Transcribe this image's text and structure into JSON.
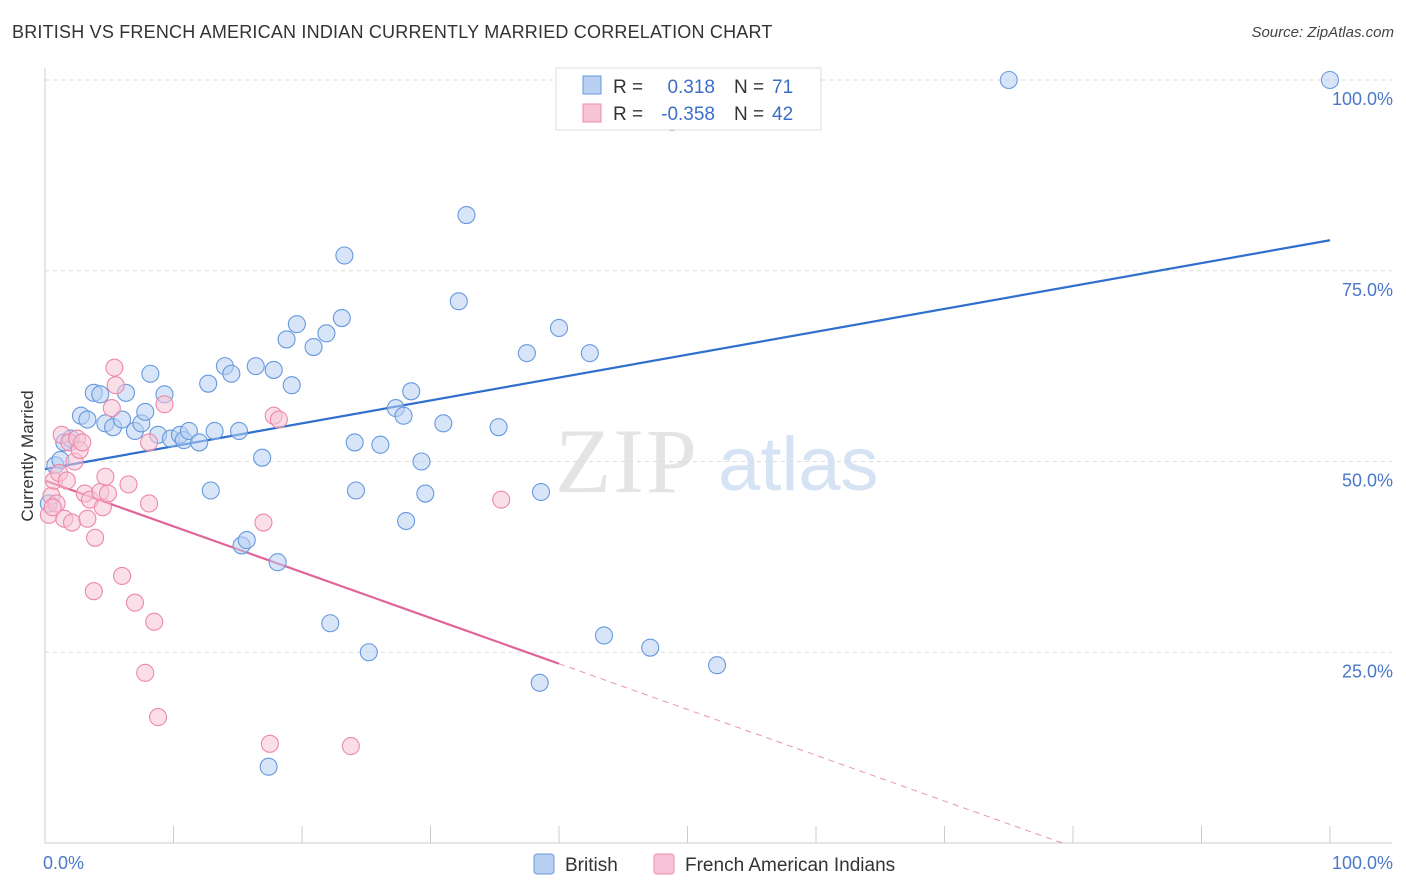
{
  "title": "BRITISH VS FRENCH AMERICAN INDIAN CURRENTLY MARRIED CORRELATION CHART",
  "source": "Source: ZipAtlas.com",
  "chart_data": {
    "type": "scatter",
    "ylabel": "Currently Married",
    "xlim": [
      0,
      100
    ],
    "ylim": [
      0,
      100
    ],
    "x_tick_labels": [
      "0.0%",
      "100.0%"
    ],
    "y_ticks": [
      25,
      50,
      75,
      100
    ],
    "y_tick_labels": [
      "25.0%",
      "50.0%",
      "75.0%",
      "100.0%"
    ],
    "grid": true,
    "watermark": {
      "zip": "ZIP",
      "atlas": "atlas"
    },
    "legend_stats": [
      {
        "r_label": "R =",
        "r_value": "0.318",
        "n_label": "N =",
        "n_value": "71",
        "color": "#6699dd"
      },
      {
        "r_label": "R =",
        "r_value": "-0.358",
        "n_label": "N =",
        "n_value": "42",
        "color": "#ee88aa"
      }
    ],
    "series": [
      {
        "name": "British",
        "color": "#6699dd",
        "fill": "#b8d0f2",
        "trend": {
          "x0": 0,
          "y0": 49,
          "x1": 100,
          "y1": 79,
          "color": "#2f6fce"
        },
        "points": [
          [
            0.3,
            44.5
          ],
          [
            0.8,
            49.5
          ],
          [
            1.2,
            50.2
          ],
          [
            1.5,
            52.5
          ],
          [
            2,
            53
          ],
          [
            2.8,
            56
          ],
          [
            3.3,
            55.5
          ],
          [
            3.8,
            59
          ],
          [
            4.3,
            58.8
          ],
          [
            4.7,
            55
          ],
          [
            5.3,
            54.5
          ],
          [
            6,
            55.5
          ],
          [
            6.3,
            59
          ],
          [
            7,
            54
          ],
          [
            7.5,
            55
          ],
          [
            7.8,
            56.5
          ],
          [
            8.2,
            61.5
          ],
          [
            8.8,
            53.5
          ],
          [
            9.3,
            58.8
          ],
          [
            9.8,
            53
          ],
          [
            10.5,
            53.5
          ],
          [
            10.8,
            52.8
          ],
          [
            11.2,
            54
          ],
          [
            12,
            52.5
          ],
          [
            12.7,
            60.2
          ],
          [
            12.9,
            46.2
          ],
          [
            13.2,
            54
          ],
          [
            14,
            62.5
          ],
          [
            14.5,
            61.5
          ],
          [
            15.1,
            54
          ],
          [
            15.3,
            39
          ],
          [
            15.7,
            39.7
          ],
          [
            16.4,
            62.5
          ],
          [
            16.9,
            50.5
          ],
          [
            17.4,
            10
          ],
          [
            17.8,
            62
          ],
          [
            18.1,
            36.8
          ],
          [
            18.8,
            66
          ],
          [
            19.2,
            60
          ],
          [
            19.6,
            68
          ],
          [
            20.9,
            65
          ],
          [
            21.9,
            66.8
          ],
          [
            22.2,
            28.8
          ],
          [
            23.1,
            68.8
          ],
          [
            23.3,
            77
          ],
          [
            24.1,
            52.5
          ],
          [
            24.2,
            46.2
          ],
          [
            25.2,
            25
          ],
          [
            26.1,
            52.2
          ],
          [
            27.3,
            57
          ],
          [
            27.9,
            56
          ],
          [
            28.1,
            42.2
          ],
          [
            28.5,
            59.2
          ],
          [
            29.3,
            50
          ],
          [
            29.6,
            45.8
          ],
          [
            31,
            55
          ],
          [
            32.2,
            71
          ],
          [
            32.8,
            82.3
          ],
          [
            35.3,
            54.5
          ],
          [
            37.5,
            64.2
          ],
          [
            38.5,
            21
          ],
          [
            38.6,
            46
          ],
          [
            40,
            67.5
          ],
          [
            42.4,
            64.2
          ],
          [
            43.5,
            27.2
          ],
          [
            47.1,
            25.6
          ],
          [
            48.8,
            94.5
          ],
          [
            52.3,
            23.3
          ],
          [
            75,
            100
          ],
          [
            100,
            100
          ],
          [
            49,
            96
          ]
        ]
      },
      {
        "name": "French American Indians",
        "color": "#ee88aa",
        "fill": "#f6c4d6",
        "trend": {
          "x0": 0,
          "y0": 47.5,
          "x1": 40,
          "y1": 23.5,
          "dash_x1": 100,
          "dash_y1": -12.5,
          "color": "#e0649a"
        },
        "points": [
          [
            0.3,
            43
          ],
          [
            0.5,
            45.5
          ],
          [
            0.7,
            47.5
          ],
          [
            0.9,
            44.5
          ],
          [
            1.1,
            48.5
          ],
          [
            1.3,
            53.5
          ],
          [
            1.5,
            42.5
          ],
          [
            1.7,
            47.5
          ],
          [
            1.9,
            52.5
          ],
          [
            2.1,
            42
          ],
          [
            2.3,
            50
          ],
          [
            2.5,
            53
          ],
          [
            2.7,
            51.5
          ],
          [
            2.9,
            52.5
          ],
          [
            3.1,
            45.8
          ],
          [
            3.3,
            42.5
          ],
          [
            3.5,
            45
          ],
          [
            3.8,
            33
          ],
          [
            3.9,
            40
          ],
          [
            4.3,
            46
          ],
          [
            4.5,
            44
          ],
          [
            4.7,
            48
          ],
          [
            4.9,
            45.8
          ],
          [
            5.2,
            57
          ],
          [
            5.5,
            60
          ],
          [
            5.4,
            62.3
          ],
          [
            6,
            35
          ],
          [
            6.5,
            47
          ],
          [
            7,
            31.5
          ],
          [
            7.8,
            22.3
          ],
          [
            8.1,
            44.5
          ],
          [
            8.1,
            52.5
          ],
          [
            8.5,
            29
          ],
          [
            8.8,
            16.5
          ],
          [
            9.3,
            57.5
          ],
          [
            17,
            42
          ],
          [
            17.5,
            13
          ],
          [
            17.8,
            56
          ],
          [
            18.2,
            55.5
          ],
          [
            23.8,
            12.7
          ],
          [
            35.5,
            45
          ],
          [
            0.6,
            44
          ]
        ]
      }
    ],
    "bottom_legend": [
      "British",
      "French American Indians"
    ]
  }
}
